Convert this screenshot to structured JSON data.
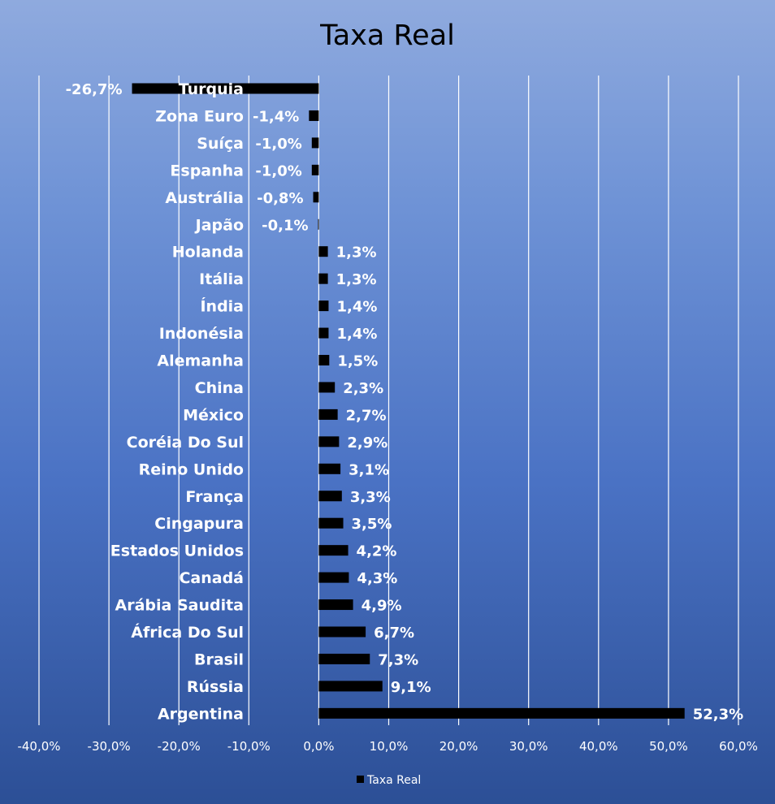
{
  "chart_data": {
    "type": "bar",
    "orientation": "horizontal",
    "title": "Taxa Real",
    "xlabel": "",
    "ylabel": "",
    "xlim": [
      -0.4,
      0.6
    ],
    "grid": "vertical",
    "legend": "bottom",
    "bar_color": "#000000",
    "categories": [
      "Turquia",
      "Zona Euro",
      "Suíça",
      "Espanha",
      "Austrália",
      "Japão",
      "Holanda",
      "Itália",
      "Índia",
      "Indonésia",
      "Alemanha",
      "China",
      "México",
      "Coréia Do Sul",
      "Reino Unido",
      "França",
      "Cingapura",
      "Estados Unidos",
      "Canadá",
      "Arábia Saudita",
      "África Do Sul",
      "Brasil",
      "Rússia",
      "Argentina"
    ],
    "series": [
      {
        "name": "Taxa Real",
        "values": [
          -0.267,
          -0.014,
          -0.01,
          -0.01,
          -0.008,
          -0.001,
          0.013,
          0.013,
          0.014,
          0.014,
          0.015,
          0.023,
          0.027,
          0.029,
          0.031,
          0.033,
          0.035,
          0.042,
          0.043,
          0.049,
          0.067,
          0.073,
          0.091,
          0.523
        ],
        "labels": [
          "-26,7%",
          "-1,4%",
          "-1,0%",
          "-1,0%",
          "-0,8%",
          "-0,1%",
          "1,3%",
          "1,3%",
          "1,4%",
          "1,4%",
          "1,5%",
          "2,3%",
          "2,7%",
          "2,9%",
          "3,1%",
          "3,3%",
          "3,5%",
          "4,2%",
          "4,3%",
          "4,9%",
          "6,7%",
          "7,3%",
          "9,1%",
          "52,3%"
        ]
      }
    ],
    "ticks": [
      -0.4,
      -0.3,
      -0.2,
      -0.1,
      0,
      0.1,
      0.2,
      0.3,
      0.4,
      0.5,
      0.6
    ],
    "tick_labels": [
      "-40,0%",
      "-30,0%",
      "-20,0%",
      "-10,0%",
      "0,0%",
      "10,0%",
      "20,0%",
      "30,0%",
      "40,0%",
      "50,0%",
      "60,0%"
    ]
  }
}
